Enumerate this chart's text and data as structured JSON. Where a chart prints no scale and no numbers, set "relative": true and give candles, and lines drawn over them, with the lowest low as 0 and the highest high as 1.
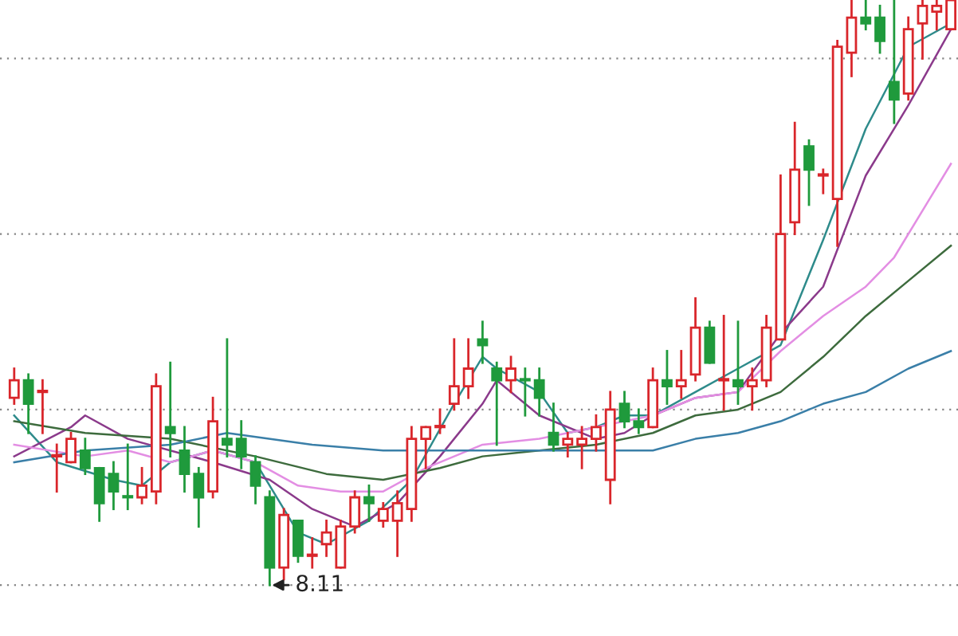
{
  "chart_data": {
    "type": "candlestick",
    "relative": true,
    "grid": "y",
    "legend": false,
    "categories": [
      null,
      null,
      null,
      null,
      null,
      null,
      null,
      null,
      null,
      null,
      null,
      null,
      null,
      null,
      null,
      null,
      null,
      null,
      null,
      null,
      null,
      null,
      null,
      null,
      null,
      null,
      null,
      null,
      null,
      null,
      null,
      null,
      null,
      null,
      null,
      null,
      null,
      null,
      null,
      null,
      null,
      null,
      null,
      null,
      null,
      null,
      null,
      null,
      null,
      null,
      null,
      null,
      null,
      null,
      null,
      null,
      null,
      null,
      null,
      null,
      null,
      null,
      null,
      null,
      null,
      null,
      null
    ],
    "ohlc": [
      [
        0.32,
        0.37,
        0.31,
        0.35
      ],
      [
        0.35,
        0.36,
        0.26,
        0.31
      ],
      [
        0.33,
        0.35,
        0.26,
        0.33
      ],
      [
        0.22,
        0.24,
        0.16,
        0.22
      ],
      [
        0.21,
        0.26,
        0.21,
        0.25
      ],
      [
        0.23,
        0.25,
        0.19,
        0.2
      ],
      [
        0.2,
        0.2,
        0.11,
        0.14
      ],
      [
        0.19,
        0.21,
        0.13,
        0.16
      ],
      [
        0.15,
        0.24,
        0.13,
        0.15
      ],
      [
        0.15,
        0.2,
        0.14,
        0.17
      ],
      [
        0.16,
        0.36,
        0.14,
        0.34
      ],
      [
        0.27,
        0.38,
        0.22,
        0.26
      ],
      [
        0.23,
        0.27,
        0.16,
        0.19
      ],
      [
        0.19,
        0.2,
        0.1,
        0.15
      ],
      [
        0.16,
        0.32,
        0.15,
        0.28
      ],
      [
        0.25,
        0.42,
        0.22,
        0.24
      ],
      [
        0.25,
        0.28,
        0.2,
        0.22
      ],
      [
        0.21,
        0.22,
        0.14,
        0.17
      ],
      [
        0.15,
        0.16,
        0.0,
        0.03
      ],
      [
        0.03,
        0.13,
        0.01,
        0.12
      ],
      [
        0.11,
        0.11,
        0.04,
        0.05
      ],
      [
        0.05,
        0.08,
        0.03,
        0.05
      ],
      [
        0.07,
        0.11,
        0.05,
        0.09
      ],
      [
        0.03,
        0.11,
        0.03,
        0.1
      ],
      [
        0.1,
        0.16,
        0.09,
        0.15
      ],
      [
        0.15,
        0.17,
        0.11,
        0.14
      ],
      [
        0.11,
        0.14,
        0.1,
        0.13
      ],
      [
        0.11,
        0.16,
        0.05,
        0.14
      ],
      [
        0.13,
        0.27,
        0.11,
        0.25
      ],
      [
        0.25,
        0.27,
        0.2,
        0.27
      ],
      [
        0.27,
        0.3,
        0.26,
        0.27
      ],
      [
        0.31,
        0.42,
        0.3,
        0.34
      ],
      [
        0.34,
        0.42,
        0.32,
        0.37
      ],
      [
        0.42,
        0.45,
        0.38,
        0.41
      ],
      [
        0.37,
        0.38,
        0.24,
        0.35
      ],
      [
        0.35,
        0.39,
        0.33,
        0.37
      ],
      [
        0.35,
        0.37,
        0.29,
        0.35
      ],
      [
        0.35,
        0.37,
        0.29,
        0.32
      ],
      [
        0.26,
        0.31,
        0.23,
        0.24
      ],
      [
        0.24,
        0.26,
        0.22,
        0.25
      ],
      [
        0.24,
        0.27,
        0.2,
        0.25
      ],
      [
        0.25,
        0.29,
        0.23,
        0.27
      ],
      [
        0.18,
        0.33,
        0.14,
        0.3
      ],
      [
        0.31,
        0.33,
        0.27,
        0.28
      ],
      [
        0.28,
        0.3,
        0.26,
        0.27
      ],
      [
        0.27,
        0.37,
        0.27,
        0.35
      ],
      [
        0.35,
        0.4,
        0.31,
        0.34
      ],
      [
        0.34,
        0.4,
        0.32,
        0.35
      ],
      [
        0.36,
        0.49,
        0.35,
        0.44
      ],
      [
        0.44,
        0.45,
        0.38,
        0.38
      ],
      [
        0.35,
        0.46,
        0.3,
        0.35
      ],
      [
        0.35,
        0.45,
        0.31,
        0.34
      ],
      [
        0.34,
        0.37,
        0.3,
        0.35
      ],
      [
        0.35,
        0.46,
        0.34,
        0.44
      ],
      [
        0.42,
        0.7,
        0.42,
        0.6
      ],
      [
        0.62,
        0.79,
        0.6,
        0.71
      ],
      [
        0.75,
        0.76,
        0.65,
        0.71
      ],
      [
        0.7,
        0.71,
        0.67,
        0.7
      ],
      [
        0.66,
        0.93,
        0.58,
        0.92
      ],
      [
        0.91,
        1.0,
        0.87,
        0.97
      ],
      [
        0.97,
        1.0,
        0.95,
        0.96
      ],
      [
        0.97,
        0.99,
        0.91,
        0.93
      ],
      [
        0.86,
        1.0,
        0.79,
        0.83
      ],
      [
        0.84,
        0.97,
        0.83,
        0.95
      ],
      [
        0.96,
        1.0,
        0.9,
        0.99
      ],
      [
        0.98,
        1.0,
        0.95,
        0.99
      ],
      [
        0.95,
        1.0,
        0.95,
        1.0
      ]
    ],
    "colors": [
      "#d9262b",
      "#1f9a3c",
      "#d9262b",
      "#d9262b",
      "#d9262b",
      "#1f9a3c",
      "#1f9a3c",
      "#1f9a3c",
      "#1f9a3c",
      "#d9262b",
      "#d9262b",
      "#1f9a3c",
      "#1f9a3c",
      "#1f9a3c",
      "#d9262b",
      "#1f9a3c",
      "#1f9a3c",
      "#1f9a3c",
      "#1f9a3c",
      "#d9262b",
      "#1f9a3c",
      "#d9262b",
      "#d9262b",
      "#d9262b",
      "#d9262b",
      "#1f9a3c",
      "#d9262b",
      "#d9262b",
      "#d9262b",
      "#d9262b",
      "#d9262b",
      "#d9262b",
      "#d9262b",
      "#1f9a3c",
      "#1f9a3c",
      "#d9262b",
      "#1f9a3c",
      "#1f9a3c",
      "#1f9a3c",
      "#d9262b",
      "#d9262b",
      "#d9262b",
      "#d9262b",
      "#1f9a3c",
      "#1f9a3c",
      "#d9262b",
      "#1f9a3c",
      "#d9262b",
      "#d9262b",
      "#1f9a3c",
      "#d9262b",
      "#1f9a3c",
      "#d9262b",
      "#d9262b",
      "#d9262b",
      "#d9262b",
      "#1f9a3c",
      "#d9262b",
      "#d9262b",
      "#d9262b",
      "#1f9a3c",
      "#1f9a3c",
      "#1f9a3c",
      "#d9262b",
      "#d9262b",
      "#d9262b",
      "#d9262b"
    ],
    "series": [
      {
        "type": "line",
        "color": "#2e8b8b",
        "values": [
          0.29,
          null,
          null,
          0.21,
          null,
          null,
          null,
          0.18,
          null,
          0.17,
          null,
          0.21,
          null,
          null,
          0.23,
          null,
          null,
          0.21,
          null,
          null,
          0.09,
          null,
          0.07,
          null,
          null,
          0.11,
          null,
          null,
          0.18,
          null,
          null,
          0.31,
          null,
          0.39,
          0.37,
          null,
          null,
          0.33,
          null,
          0.26,
          null,
          0.27,
          null,
          0.29,
          null,
          0.29,
          null,
          null,
          0.33,
          null,
          null,
          0.37,
          null,
          null,
          0.41,
          null,
          null,
          0.59,
          null,
          null,
          0.78,
          null,
          null,
          0.92,
          null,
          null,
          0.96
        ]
      },
      {
        "type": "line",
        "color": "#8b3a8b",
        "values": [
          0.22,
          null,
          null,
          null,
          0.27,
          0.29,
          null,
          null,
          0.25,
          null,
          null,
          null,
          null,
          null,
          0.21,
          null,
          null,
          null,
          0.18,
          null,
          null,
          0.13,
          null,
          null,
          0.1,
          null,
          null,
          0.14,
          null,
          null,
          0.22,
          null,
          null,
          0.31,
          0.35,
          null,
          null,
          0.29,
          null,
          null,
          null,
          0.25,
          null,
          0.26,
          null,
          0.29,
          null,
          null,
          0.32,
          null,
          null,
          0.33,
          null,
          null,
          0.43,
          null,
          null,
          0.51,
          null,
          null,
          0.7,
          null,
          null,
          0.82,
          null,
          null,
          0.95
        ]
      },
      {
        "type": "line",
        "color": "#e38ee3",
        "values": [
          0.24,
          null,
          null,
          null,
          null,
          0.22,
          null,
          null,
          0.23,
          null,
          null,
          0.21,
          null,
          null,
          0.23,
          null,
          null,
          0.21,
          null,
          null,
          0.17,
          null,
          null,
          0.16,
          null,
          null,
          0.16,
          null,
          null,
          0.2,
          null,
          null,
          null,
          0.24,
          null,
          null,
          null,
          0.25,
          null,
          null,
          null,
          0.27,
          null,
          null,
          null,
          0.29,
          null,
          null,
          0.32,
          null,
          null,
          0.33,
          null,
          null,
          0.4,
          null,
          null,
          0.46,
          null,
          null,
          0.51,
          null,
          0.56,
          null,
          null,
          null,
          0.72
        ]
      },
      {
        "type": "line",
        "color": "#3d6b3d",
        "values": [
          0.28,
          null,
          null,
          null,
          null,
          0.26,
          null,
          null,
          null,
          null,
          null,
          0.25,
          null,
          null,
          null,
          null,
          null,
          0.22,
          null,
          null,
          null,
          null,
          0.19,
          null,
          null,
          null,
          0.18,
          null,
          null,
          null,
          0.2,
          null,
          null,
          0.22,
          null,
          null,
          null,
          0.23,
          null,
          null,
          null,
          0.24,
          null,
          null,
          null,
          0.26,
          null,
          null,
          0.29,
          null,
          null,
          0.3,
          null,
          null,
          0.33,
          null,
          null,
          0.39,
          null,
          null,
          0.46,
          null,
          null,
          0.52,
          null,
          null,
          0.58
        ]
      },
      {
        "type": "line",
        "color": "#3a7fa8",
        "values": [
          0.21,
          null,
          null,
          null,
          null,
          0.23,
          null,
          null,
          null,
          null,
          null,
          0.24,
          null,
          null,
          null,
          0.26,
          null,
          null,
          null,
          null,
          null,
          0.24,
          null,
          null,
          null,
          null,
          0.23,
          null,
          null,
          null,
          null,
          null,
          null,
          0.23,
          null,
          null,
          null,
          0.23,
          null,
          null,
          null,
          0.23,
          null,
          null,
          null,
          0.23,
          null,
          null,
          0.25,
          null,
          null,
          0.26,
          null,
          null,
          0.28,
          null,
          null,
          0.31,
          null,
          null,
          0.33,
          null,
          null,
          0.37,
          null,
          null,
          0.4
        ]
      }
    ],
    "annotations": [
      "8.11"
    ]
  }
}
